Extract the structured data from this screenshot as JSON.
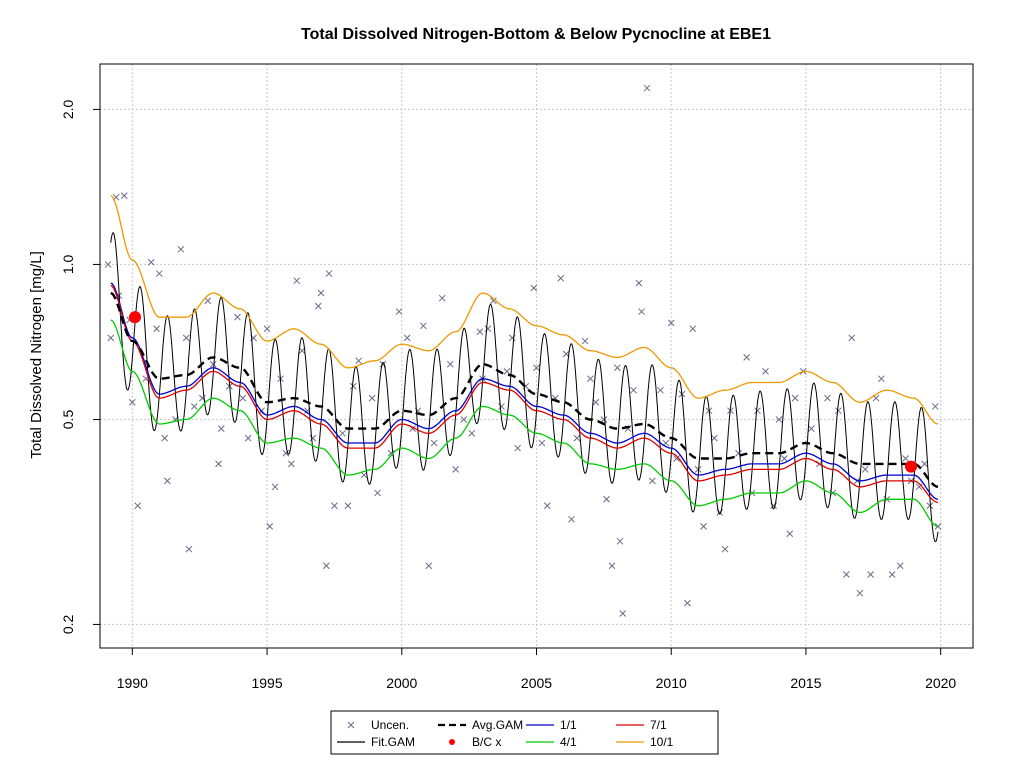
{
  "chart_data": {
    "type": "line",
    "title": "Total Dissolved Nitrogen-Bottom & Below Pycnocline at EBE1",
    "xlabel": "",
    "ylabel": "Total Dissolved Nitrogen [mg/L]",
    "y_scale": "log",
    "xlim": [
      1988.8,
      2021.2
    ],
    "ylim": [
      0.18,
      2.45
    ],
    "x_ticks": [
      1990,
      1995,
      2000,
      2005,
      2010,
      2015,
      2020
    ],
    "x_tick_labels": [
      "1990",
      "1995",
      "2000",
      "2005",
      "2010",
      "2015",
      "2020"
    ],
    "y_ticks": [
      0.2,
      0.5,
      1.0,
      2.0
    ],
    "y_tick_labels": [
      "0.2",
      "0.5",
      "1.0",
      "2.0"
    ],
    "grid": true,
    "legend_position": "bottom-center",
    "legend": [
      {
        "label": "Uncen.",
        "kind": "points",
        "color": "#6a6a8a"
      },
      {
        "label": "Avg.GAM",
        "kind": "dashed-line",
        "color": "#000000"
      },
      {
        "label": "1/1",
        "kind": "line",
        "color": "#0000cc"
      },
      {
        "label": "7/1",
        "kind": "line",
        "color": "#dd0000"
      },
      {
        "label": "Fit.GAM",
        "kind": "line",
        "color": "#000000"
      },
      {
        "label": "B/C x",
        "kind": "big-points",
        "color": "#ff0000"
      },
      {
        "label": "4/1",
        "kind": "line",
        "color": "#00cc00"
      },
      {
        "label": "10/1",
        "kind": "line",
        "color": "#ee9900"
      }
    ],
    "series": [
      {
        "name": "Avg.GAM",
        "color": "#000000",
        "x": [
          1989.2,
          1990.0,
          1991.0,
          1992.0,
          1993.0,
          1994.0,
          1995.0,
          1996.0,
          1997.0,
          1998.0,
          1999.0,
          2000.0,
          2001.0,
          2002.0,
          2003.0,
          2004.0,
          2005.0,
          2006.0,
          2007.0,
          2008.0,
          2009.0,
          2010.0,
          2011.0,
          2012.0,
          2013.0,
          2014.0,
          2015.0,
          2016.0,
          2017.0,
          2018.0,
          2019.0,
          2019.9
        ],
        "y": [
          0.88,
          0.71,
          0.6,
          0.61,
          0.66,
          0.63,
          0.54,
          0.55,
          0.53,
          0.48,
          0.48,
          0.52,
          0.51,
          0.55,
          0.64,
          0.61,
          0.56,
          0.54,
          0.5,
          0.48,
          0.49,
          0.46,
          0.42,
          0.42,
          0.43,
          0.43,
          0.45,
          0.43,
          0.41,
          0.41,
          0.41,
          0.37
        ]
      },
      {
        "name": "Fit.GAM",
        "color": "#000000",
        "x": [
          1989.2,
          1990.0,
          1991.0,
          1992.0,
          1993.0,
          1994.0,
          1995.0,
          1996.0,
          1997.0,
          1998.0,
          1999.0,
          2000.0,
          2001.0,
          2002.0,
          2003.0,
          2004.0,
          2005.0,
          2006.0,
          2007.0,
          2008.0,
          2009.0,
          2010.0,
          2011.0,
          2012.0,
          2013.0,
          2014.0,
          2015.0,
          2016.0,
          2017.0,
          2018.0,
          2019.0,
          2019.9
        ],
        "y": [
          0.88,
          0.71,
          0.6,
          0.61,
          0.66,
          0.63,
          0.54,
          0.55,
          0.53,
          0.48,
          0.48,
          0.52,
          0.51,
          0.55,
          0.64,
          0.61,
          0.56,
          0.54,
          0.5,
          0.48,
          0.49,
          0.46,
          0.42,
          0.42,
          0.43,
          0.43,
          0.45,
          0.43,
          0.41,
          0.41,
          0.41,
          0.37
        ],
        "seasonal_peak_factor": 1.32,
        "seasonal_trough_factor": 0.78
      },
      {
        "name": "1/1",
        "color": "#0000cc",
        "x": [
          1989.2,
          1990.0,
          1991.0,
          1992.0,
          1993.0,
          1994.0,
          1995.0,
          1996.0,
          1997.0,
          1998.0,
          1999.0,
          2000.0,
          2001.0,
          2002.0,
          2003.0,
          2004.0,
          2005.0,
          2006.0,
          2007.0,
          2008.0,
          2009.0,
          2010.0,
          2011.0,
          2012.0,
          2013.0,
          2014.0,
          2015.0,
          2016.0,
          2017.0,
          2018.0,
          2019.0,
          2019.9
        ],
        "y": [
          0.92,
          0.72,
          0.56,
          0.58,
          0.63,
          0.59,
          0.51,
          0.53,
          0.5,
          0.45,
          0.45,
          0.5,
          0.48,
          0.52,
          0.6,
          0.58,
          0.53,
          0.51,
          0.47,
          0.45,
          0.47,
          0.44,
          0.39,
          0.4,
          0.41,
          0.41,
          0.43,
          0.41,
          0.38,
          0.39,
          0.39,
          0.35
        ]
      },
      {
        "name": "7/1",
        "color": "#dd0000",
        "x": [
          1989.2,
          1990.0,
          1991.0,
          1992.0,
          1993.0,
          1994.0,
          1995.0,
          1996.0,
          1997.0,
          1998.0,
          1999.0,
          2000.0,
          2001.0,
          2002.0,
          2003.0,
          2004.0,
          2005.0,
          2006.0,
          2007.0,
          2008.0,
          2009.0,
          2010.0,
          2011.0,
          2012.0,
          2013.0,
          2014.0,
          2015.0,
          2016.0,
          2017.0,
          2018.0,
          2019.0,
          2019.9
        ],
        "y": [
          0.91,
          0.71,
          0.55,
          0.57,
          0.62,
          0.58,
          0.5,
          0.52,
          0.49,
          0.44,
          0.44,
          0.49,
          0.47,
          0.51,
          0.59,
          0.57,
          0.52,
          0.5,
          0.46,
          0.44,
          0.46,
          0.43,
          0.38,
          0.39,
          0.4,
          0.4,
          0.42,
          0.4,
          0.37,
          0.38,
          0.38,
          0.345
        ]
      },
      {
        "name": "4/1",
        "color": "#00cc00",
        "x": [
          1989.2,
          1990.0,
          1991.0,
          1992.0,
          1993.0,
          1994.0,
          1995.0,
          1996.0,
          1997.0,
          1998.0,
          1999.0,
          2000.0,
          2001.0,
          2002.0,
          2003.0,
          2004.0,
          2005.0,
          2006.0,
          2007.0,
          2008.0,
          2009.0,
          2010.0,
          2011.0,
          2012.0,
          2013.0,
          2014.0,
          2015.0,
          2016.0,
          2017.0,
          2018.0,
          2019.0,
          2019.9
        ],
        "y": [
          0.78,
          0.62,
          0.49,
          0.5,
          0.55,
          0.52,
          0.45,
          0.46,
          0.44,
          0.39,
          0.4,
          0.44,
          0.42,
          0.46,
          0.53,
          0.51,
          0.47,
          0.45,
          0.41,
          0.4,
          0.41,
          0.38,
          0.34,
          0.35,
          0.36,
          0.36,
          0.38,
          0.36,
          0.33,
          0.35,
          0.35,
          0.31
        ]
      },
      {
        "name": "10/1",
        "color": "#ee9900",
        "x": [
          1989.2,
          1990.0,
          1991.0,
          1992.0,
          1993.0,
          1994.0,
          1995.0,
          1996.0,
          1997.0,
          1998.0,
          1999.0,
          2000.0,
          2001.0,
          2002.0,
          2003.0,
          2004.0,
          2005.0,
          2006.0,
          2007.0,
          2008.0,
          2009.0,
          2010.0,
          2011.0,
          2012.0,
          2013.0,
          2014.0,
          2015.0,
          2016.0,
          2017.0,
          2018.0,
          2019.0,
          2019.9
        ],
        "y": [
          1.36,
          1.02,
          0.79,
          0.79,
          0.88,
          0.82,
          0.71,
          0.75,
          0.7,
          0.63,
          0.65,
          0.7,
          0.68,
          0.74,
          0.88,
          0.82,
          0.76,
          0.73,
          0.68,
          0.66,
          0.69,
          0.63,
          0.55,
          0.57,
          0.59,
          0.59,
          0.62,
          0.59,
          0.54,
          0.57,
          0.55,
          0.49
        ]
      }
    ],
    "bc_points": [
      {
        "x": 1990.1,
        "y": 0.79
      },
      {
        "x": 2018.9,
        "y": 0.405
      }
    ],
    "uncen_points": [
      [
        1989.1,
        1.0
      ],
      [
        1989.2,
        0.72
      ],
      [
        1989.4,
        1.35
      ],
      [
        1989.5,
        0.87
      ],
      [
        1989.7,
        1.36
      ],
      [
        1989.9,
        0.78
      ],
      [
        1990.0,
        0.54
      ],
      [
        1990.2,
        0.34
      ],
      [
        1990.5,
        0.6
      ],
      [
        1990.7,
        1.01
      ],
      [
        1990.9,
        0.75
      ],
      [
        1991.0,
        0.96
      ],
      [
        1991.2,
        0.46
      ],
      [
        1991.3,
        0.38
      ],
      [
        1991.6,
        0.5
      ],
      [
        1991.8,
        1.07
      ],
      [
        1992.0,
        0.72
      ],
      [
        1992.1,
        0.28
      ],
      [
        1992.3,
        0.53
      ],
      [
        1992.6,
        0.55
      ],
      [
        1992.8,
        0.85
      ],
      [
        1993.0,
        0.64
      ],
      [
        1993.2,
        0.41
      ],
      [
        1993.3,
        0.48
      ],
      [
        1993.6,
        0.58
      ],
      [
        1993.9,
        0.79
      ],
      [
        1994.1,
        0.55
      ],
      [
        1994.3,
        0.46
      ],
      [
        1994.5,
        0.72
      ],
      [
        1994.8,
        0.52
      ],
      [
        1995.0,
        0.75
      ],
      [
        1995.1,
        0.31
      ],
      [
        1995.3,
        0.37
      ],
      [
        1995.5,
        0.6
      ],
      [
        1995.7,
        0.43
      ],
      [
        1995.9,
        0.41
      ],
      [
        1996.1,
        0.93
      ],
      [
        1996.3,
        0.68
      ],
      [
        1996.5,
        0.52
      ],
      [
        1996.7,
        0.46
      ],
      [
        1996.9,
        0.83
      ],
      [
        1997.0,
        0.88
      ],
      [
        1997.2,
        0.26
      ],
      [
        1997.3,
        0.96
      ],
      [
        1997.5,
        0.34
      ],
      [
        1997.8,
        0.47
      ],
      [
        1998.0,
        0.34
      ],
      [
        1998.2,
        0.58
      ],
      [
        1998.4,
        0.65
      ],
      [
        1998.6,
        0.39
      ],
      [
        1998.9,
        0.55
      ],
      [
        1999.1,
        0.36
      ],
      [
        1999.3,
        0.64
      ],
      [
        1999.6,
        0.43
      ],
      [
        1999.9,
        0.81
      ],
      [
        2000.2,
        0.72
      ],
      [
        2000.4,
        0.48
      ],
      [
        2000.6,
        0.52
      ],
      [
        2000.8,
        0.76
      ],
      [
        2001.0,
        0.26
      ],
      [
        2001.2,
        0.45
      ],
      [
        2001.5,
        0.86
      ],
      [
        2001.8,
        0.64
      ],
      [
        2002.0,
        0.4
      ],
      [
        2002.3,
        0.5
      ],
      [
        2002.6,
        0.47
      ],
      [
        2002.9,
        0.74
      ],
      [
        2003.0,
        0.6
      ],
      [
        2003.2,
        0.75
      ],
      [
        2003.4,
        0.85
      ],
      [
        2003.7,
        0.53
      ],
      [
        2003.9,
        0.62
      ],
      [
        2004.1,
        0.72
      ],
      [
        2004.3,
        0.44
      ],
      [
        2004.6,
        0.58
      ],
      [
        2004.9,
        0.9
      ],
      [
        2005.0,
        0.63
      ],
      [
        2005.2,
        0.45
      ],
      [
        2005.4,
        0.34
      ],
      [
        2005.7,
        0.55
      ],
      [
        2005.9,
        0.94
      ],
      [
        2006.1,
        0.67
      ],
      [
        2006.3,
        0.32
      ],
      [
        2006.5,
        0.46
      ],
      [
        2006.8,
        0.71
      ],
      [
        2007.0,
        0.6
      ],
      [
        2007.2,
        0.54
      ],
      [
        2007.5,
        0.5
      ],
      [
        2007.6,
        0.35
      ],
      [
        2007.8,
        0.26
      ],
      [
        2008.0,
        0.63
      ],
      [
        2008.1,
        0.29
      ],
      [
        2008.2,
        0.21
      ],
      [
        2008.4,
        0.48
      ],
      [
        2008.6,
        0.57
      ],
      [
        2008.8,
        0.92
      ],
      [
        2008.9,
        0.81
      ],
      [
        2009.1,
        2.2
      ],
      [
        2009.3,
        0.38
      ],
      [
        2009.6,
        0.57
      ],
      [
        2009.8,
        0.45
      ],
      [
        2010.0,
        0.77
      ],
      [
        2010.2,
        0.42
      ],
      [
        2010.4,
        0.56
      ],
      [
        2010.6,
        0.22
      ],
      [
        2010.8,
        0.75
      ],
      [
        2011.0,
        0.4
      ],
      [
        2011.2,
        0.31
      ],
      [
        2011.4,
        0.52
      ],
      [
        2011.6,
        0.46
      ],
      [
        2011.8,
        0.33
      ],
      [
        2012.0,
        0.28
      ],
      [
        2012.2,
        0.52
      ],
      [
        2012.5,
        0.43
      ],
      [
        2012.8,
        0.66
      ],
      [
        2013.0,
        0.36
      ],
      [
        2013.2,
        0.52
      ],
      [
        2013.5,
        0.62
      ],
      [
        2013.8,
        0.34
      ],
      [
        2014.0,
        0.5
      ],
      [
        2014.2,
        0.42
      ],
      [
        2014.4,
        0.3
      ],
      [
        2014.6,
        0.55
      ],
      [
        2014.9,
        0.62
      ],
      [
        2015.2,
        0.48
      ],
      [
        2015.5,
        0.41
      ],
      [
        2015.8,
        0.55
      ],
      [
        2016.0,
        0.36
      ],
      [
        2016.2,
        0.52
      ],
      [
        2016.5,
        0.25
      ],
      [
        2016.7,
        0.72
      ],
      [
        2016.9,
        0.38
      ],
      [
        2017.0,
        0.23
      ],
      [
        2017.2,
        0.4
      ],
      [
        2017.4,
        0.25
      ],
      [
        2017.6,
        0.55
      ],
      [
        2017.8,
        0.6
      ],
      [
        2018.0,
        0.35
      ],
      [
        2018.2,
        0.25
      ],
      [
        2018.5,
        0.26
      ],
      [
        2018.7,
        0.42
      ],
      [
        2018.9,
        0.38
      ],
      [
        2019.2,
        0.37
      ],
      [
        2019.4,
        0.41
      ],
      [
        2019.6,
        0.34
      ],
      [
        2019.8,
        0.53
      ],
      [
        2019.9,
        0.31
      ]
    ]
  }
}
